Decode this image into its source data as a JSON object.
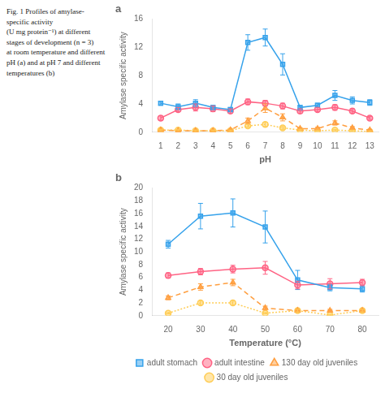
{
  "chart_data": [
    {
      "type": "line",
      "title": "a",
      "annotations": [
        "Fig. 1  Profiles of amylase-",
        "specific activity",
        "(U mg protein⁻¹) at different",
        "stages of development (n = 3)",
        "at room temperature and different",
        "pH (a) and at pH 7 and different",
        "temperatures (b)"
      ],
      "x": [
        1,
        2,
        3,
        4,
        5,
        6,
        7,
        8,
        9,
        10,
        11,
        12,
        13
      ],
      "xlim": [
        0.5,
        13.5
      ],
      "xticks": [
        1,
        2,
        3,
        4,
        5,
        6,
        7,
        8,
        9,
        10,
        11,
        12,
        13
      ],
      "ylim": [
        0,
        16
      ],
      "yticks": [
        0,
        4,
        8,
        12,
        16
      ],
      "xlabel": "pH",
      "ylabel": "Amylase specific activity",
      "grid": false,
      "series": [
        {
          "name": "adult stomach",
          "values": [
            4.1,
            3.6,
            4.1,
            3.5,
            3.2,
            12.7,
            13.4,
            9.6,
            3.5,
            3.8,
            5.2,
            4.5,
            4.2
          ],
          "errors": [
            0.3,
            0.4,
            0.5,
            0.3,
            0.3,
            1.1,
            1.2,
            1.5,
            0.3,
            0.3,
            0.7,
            0.5,
            0.4
          ],
          "marker": "square",
          "line_style": "solid"
        },
        {
          "name": "adult intestine",
          "values": [
            2.0,
            3.2,
            3.5,
            3.3,
            3.0,
            4.3,
            4.1,
            3.7,
            3.0,
            3.2,
            3.5,
            3.0,
            2.0
          ],
          "errors": [
            0.3,
            0.3,
            0.5,
            0.4,
            0.3,
            0.4,
            0.4,
            0.4,
            0.3,
            0.3,
            0.4,
            0.3,
            0.2
          ],
          "marker": "circle",
          "line_style": "solid"
        },
        {
          "name": "130 day old juveniles",
          "values": [
            0.3,
            0.2,
            0.2,
            0.2,
            0.3,
            1.6,
            3.4,
            2.1,
            0.5,
            0.5,
            1.3,
            0.6,
            0.3
          ],
          "errors": [
            0.1,
            0.1,
            0.1,
            0.1,
            0.1,
            0.4,
            0.6,
            0.5,
            0.1,
            0.2,
            0.3,
            0.2,
            0.1
          ],
          "marker": "triangle",
          "line_style": "dashed"
        },
        {
          "name": "30 day old juveniles",
          "values": [
            0.3,
            0.3,
            0.2,
            0.2,
            0.2,
            0.9,
            1.1,
            0.6,
            0.3,
            0.2,
            0.3,
            0.2,
            0.1
          ],
          "errors": [
            0.1,
            0.1,
            0.1,
            0.1,
            0.1,
            0.2,
            0.3,
            0.2,
            0.1,
            0.1,
            0.1,
            0.1,
            0.1
          ],
          "marker": "circle",
          "line_style": "dotted"
        }
      ]
    },
    {
      "type": "line",
      "title": "b",
      "x": [
        20,
        30,
        40,
        50,
        60,
        70,
        80
      ],
      "xlim": [
        15,
        85
      ],
      "xticks": [
        20,
        30,
        40,
        50,
        60,
        70,
        80
      ],
      "ylim": [
        0,
        20
      ],
      "yticks": [
        0,
        2,
        4,
        6,
        8,
        10,
        12,
        14,
        16,
        18,
        20
      ],
      "xlabel": "Temperature (°C)",
      "ylabel": "Amylase specific activity",
      "grid": false,
      "legend": "bottom",
      "series": [
        {
          "name": "adult stomach",
          "values": [
            11.2,
            15.6,
            16.1,
            13.9,
            5.6,
            4.4,
            4.2
          ],
          "errors": [
            0.6,
            2.0,
            2.2,
            2.5,
            1.5,
            0.5,
            0.5
          ],
          "marker": "square",
          "line_style": "solid"
        },
        {
          "name": "adult intestine",
          "values": [
            6.3,
            6.9,
            7.3,
            7.5,
            4.8,
            5.0,
            5.2
          ],
          "errors": [
            0.4,
            0.5,
            0.6,
            1.0,
            0.6,
            0.8,
            0.5
          ],
          "marker": "circle",
          "line_style": "solid"
        },
        {
          "name": "130 day old juveniles",
          "values": [
            2.8,
            4.5,
            5.2,
            1.2,
            0.8,
            0.8,
            0.8
          ],
          "errors": [
            0.3,
            0.5,
            0.5,
            0.3,
            0.2,
            0.2,
            0.2
          ],
          "marker": "triangle",
          "line_style": "dashed"
        },
        {
          "name": "30 day old juveniles",
          "values": [
            0.4,
            2.0,
            2.0,
            0.4,
            0.8,
            0.1,
            0.8
          ],
          "errors": [
            0.1,
            0.3,
            0.3,
            0.1,
            0.2,
            0.1,
            0.2
          ],
          "marker": "circle",
          "line_style": "dotted"
        }
      ]
    }
  ]
}
